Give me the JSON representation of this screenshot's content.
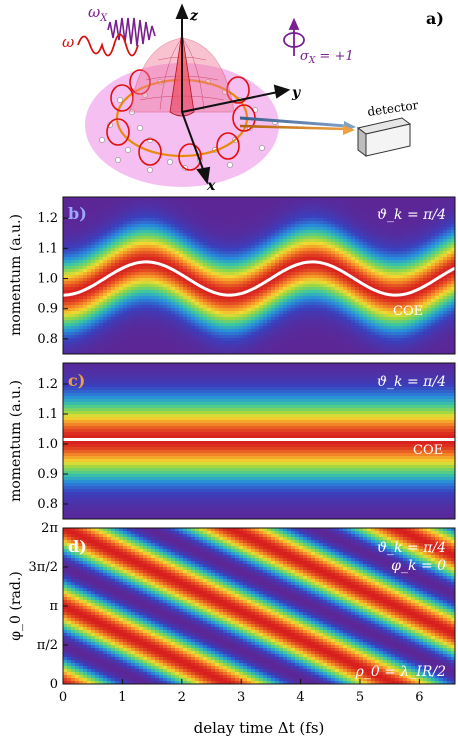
{
  "panel_a": {
    "label": "a)",
    "omega_x": "ω_X",
    "omega": "ω",
    "axis_z": "z",
    "axis_y": "y",
    "axis_x": "x",
    "sigma": "σ_X = +1",
    "detector": "detector",
    "colors": {
      "disk": "#f3b4ef",
      "orbit": "#e01010",
      "xray": "#7a1f8f",
      "beam_blue": "#5b7fae",
      "beam_orange": "#d98a1a"
    }
  },
  "chart_data": [
    {
      "id": "b",
      "type": "heatmap",
      "label": "b)",
      "annotation": "ϑ_k = π/4",
      "curve_label": "COE",
      "ylabel": "momentum (a.u.)",
      "ylim": [
        0.75,
        1.27
      ],
      "yticks": [
        "0.8",
        "0.9",
        "1.0",
        "1.1",
        "1.2"
      ],
      "ytick_values": [
        0.8,
        0.9,
        1.0,
        1.1,
        1.2
      ],
      "xlim": [
        0,
        6.6
      ],
      "coe": {
        "mean": 1.0,
        "amplitude": 0.055,
        "period": 2.8,
        "min_at": 0.0
      },
      "band_width": 0.11
    },
    {
      "id": "c",
      "type": "heatmap",
      "label": "c)",
      "annotation": "ϑ_k = π/4",
      "curve_label": "COE",
      "ylabel": "momentum (a.u.)",
      "ylim": [
        0.75,
        1.27
      ],
      "yticks": [
        "0.8",
        "0.9",
        "1.0",
        "1.1",
        "1.2"
      ],
      "ytick_values": [
        0.8,
        0.9,
        1.0,
        1.1,
        1.2
      ],
      "xlim": [
        0,
        6.6
      ],
      "coe": {
        "mean": 1.015,
        "amplitude": 0.0,
        "period": 2.8,
        "min_at": 0.0
      },
      "band_width": 0.13
    },
    {
      "id": "d",
      "type": "heatmap",
      "label": "d)",
      "annotations": [
        "ϑ_k = π/4",
        "φ_k = 0"
      ],
      "corner_note": "ρ_0 = λ_IR/2",
      "ylabel": "φ_0 (rad.)",
      "ylim": [
        0,
        6.2832
      ],
      "yticks": [
        "0",
        "π/2",
        "π",
        "3π/2",
        "2π"
      ],
      "ytick_values": [
        0,
        1.5708,
        3.1416,
        4.7124,
        6.2832
      ],
      "xlabel": "delay time Δt (fs)",
      "xlim": [
        0,
        6.6
      ],
      "xticks": [
        "0",
        "1",
        "2",
        "3",
        "4",
        "5",
        "6"
      ],
      "xtick_values": [
        0,
        1,
        2,
        3,
        4,
        5,
        6
      ],
      "stripes": {
        "omega": 2.244,
        "k_phi": 2.0
      }
    }
  ]
}
